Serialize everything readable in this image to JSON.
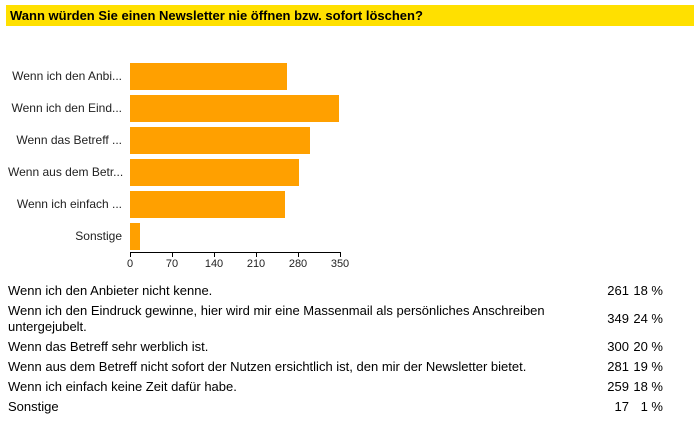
{
  "title": "Wann würden Sie einen Newsletter nie öffnen bzw. sofort löschen?",
  "colors": {
    "bar": "#ffa000",
    "title_highlight": "#ffe000"
  },
  "chart_data": {
    "type": "bar",
    "orientation": "horizontal",
    "title": "Wann würden Sie einen Newsletter nie öffnen bzw. sofort löschen?",
    "categories": [
      "Wenn ich den Anbi...",
      "Wenn ich den Eind...",
      "Wenn das Betreff ...",
      "Wenn aus dem Betr...",
      "Wenn ich einfach ...",
      "Sonstige"
    ],
    "values": [
      261,
      349,
      300,
      281,
      259,
      17
    ],
    "xlabel": "",
    "ylabel": "",
    "xlim": [
      0,
      350
    ],
    "xticks": [
      0,
      70,
      140,
      210,
      280,
      350
    ],
    "grid": false,
    "legend": false,
    "bar_color": "#ffa000"
  },
  "table": {
    "rows": [
      {
        "label": "Wenn ich den Anbieter nicht kenne.",
        "count": "261",
        "percent": "18 %"
      },
      {
        "label": "Wenn ich den Eindruck gewinne, hier wird mir eine Massenmail als persönliches Anschreiben untergejubelt.",
        "count": "349",
        "percent": "24 %"
      },
      {
        "label": "Wenn das Betreff sehr werblich ist.",
        "count": "300",
        "percent": "20 %"
      },
      {
        "label": "Wenn aus dem Betreff nicht sofort der Nutzen ersichtlich ist, den mir der Newsletter bietet.",
        "count": "281",
        "percent": "19 %"
      },
      {
        "label": "Wenn ich einfach keine Zeit dafür habe.",
        "count": "259",
        "percent": "18 %"
      },
      {
        "label": "Sonstige",
        "count": "17",
        "percent": "1 %"
      }
    ]
  }
}
